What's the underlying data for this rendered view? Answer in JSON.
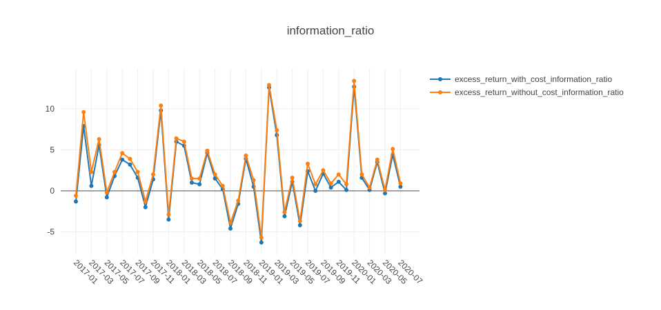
{
  "chart_data": {
    "type": "line",
    "title": "information_ratio",
    "xlabel": "",
    "ylabel": "",
    "legend_position": "top-right",
    "grid": true,
    "ylim": [
      -7.5,
      15
    ],
    "y_ticks": [
      "-5",
      "0",
      "5",
      "10"
    ],
    "y_tick_values": [
      -5,
      0,
      5,
      10
    ],
    "x_tick_labels": [
      "2017-01",
      "2017-03",
      "2017-05",
      "2017-07",
      "2017-09",
      "2017-11",
      "2018-01",
      "2018-03",
      "2018-05",
      "2018-07",
      "2018-09",
      "2018-11",
      "2019-01",
      "2019-03",
      "2019-05",
      "2019-07",
      "2019-09",
      "2019-11",
      "2020-01",
      "2020-03",
      "2020-05",
      "2020-07"
    ],
    "x": [
      "2017-01",
      "2017-02",
      "2017-03",
      "2017-04",
      "2017-05",
      "2017-06",
      "2017-07",
      "2017-08",
      "2017-09",
      "2017-10",
      "2017-11",
      "2017-12",
      "2018-01",
      "2018-02",
      "2018-03",
      "2018-04",
      "2018-05",
      "2018-06",
      "2018-07",
      "2018-08",
      "2018-09",
      "2018-10",
      "2018-11",
      "2018-12",
      "2019-01",
      "2019-02",
      "2019-03",
      "2019-04",
      "2019-05",
      "2019-06",
      "2019-07",
      "2019-08",
      "2019-09",
      "2019-10",
      "2019-11",
      "2019-12",
      "2020-01",
      "2020-02",
      "2020-03",
      "2020-04",
      "2020-05",
      "2020-06",
      "2020-07"
    ],
    "series": [
      {
        "name": "excess_return_with_cost_information_ratio",
        "color": "#1f77b4",
        "values": [
          -1.3,
          7.9,
          0.6,
          5.6,
          -0.8,
          1.8,
          3.8,
          3.2,
          1.6,
          -2.0,
          1.4,
          9.8,
          -3.5,
          6.0,
          5.5,
          1.0,
          0.8,
          4.6,
          1.5,
          0.2,
          -4.6,
          -1.6,
          3.9,
          0.5,
          -6.3,
          12.6,
          6.8,
          -3.1,
          1.1,
          -4.2,
          2.4,
          0.0,
          2.1,
          0.4,
          1.1,
          0.1,
          12.7,
          1.6,
          0.1,
          3.5,
          -0.3,
          4.4,
          0.5
        ]
      },
      {
        "name": "excess_return_without_cost_information_ratio",
        "color": "#ff7f0e",
        "values": [
          -0.6,
          9.6,
          2.3,
          6.3,
          -0.2,
          2.3,
          4.6,
          3.9,
          2.3,
          -1.3,
          2.0,
          10.4,
          -2.9,
          6.4,
          6.0,
          1.5,
          1.5,
          4.9,
          2.0,
          0.6,
          -3.9,
          -1.2,
          4.3,
          1.3,
          -5.7,
          12.9,
          7.4,
          -2.6,
          1.6,
          -3.7,
          3.3,
          0.8,
          2.5,
          0.9,
          2.0,
          0.8,
          13.4,
          2.0,
          0.4,
          3.8,
          0.1,
          5.1,
          0.9
        ]
      }
    ]
  }
}
